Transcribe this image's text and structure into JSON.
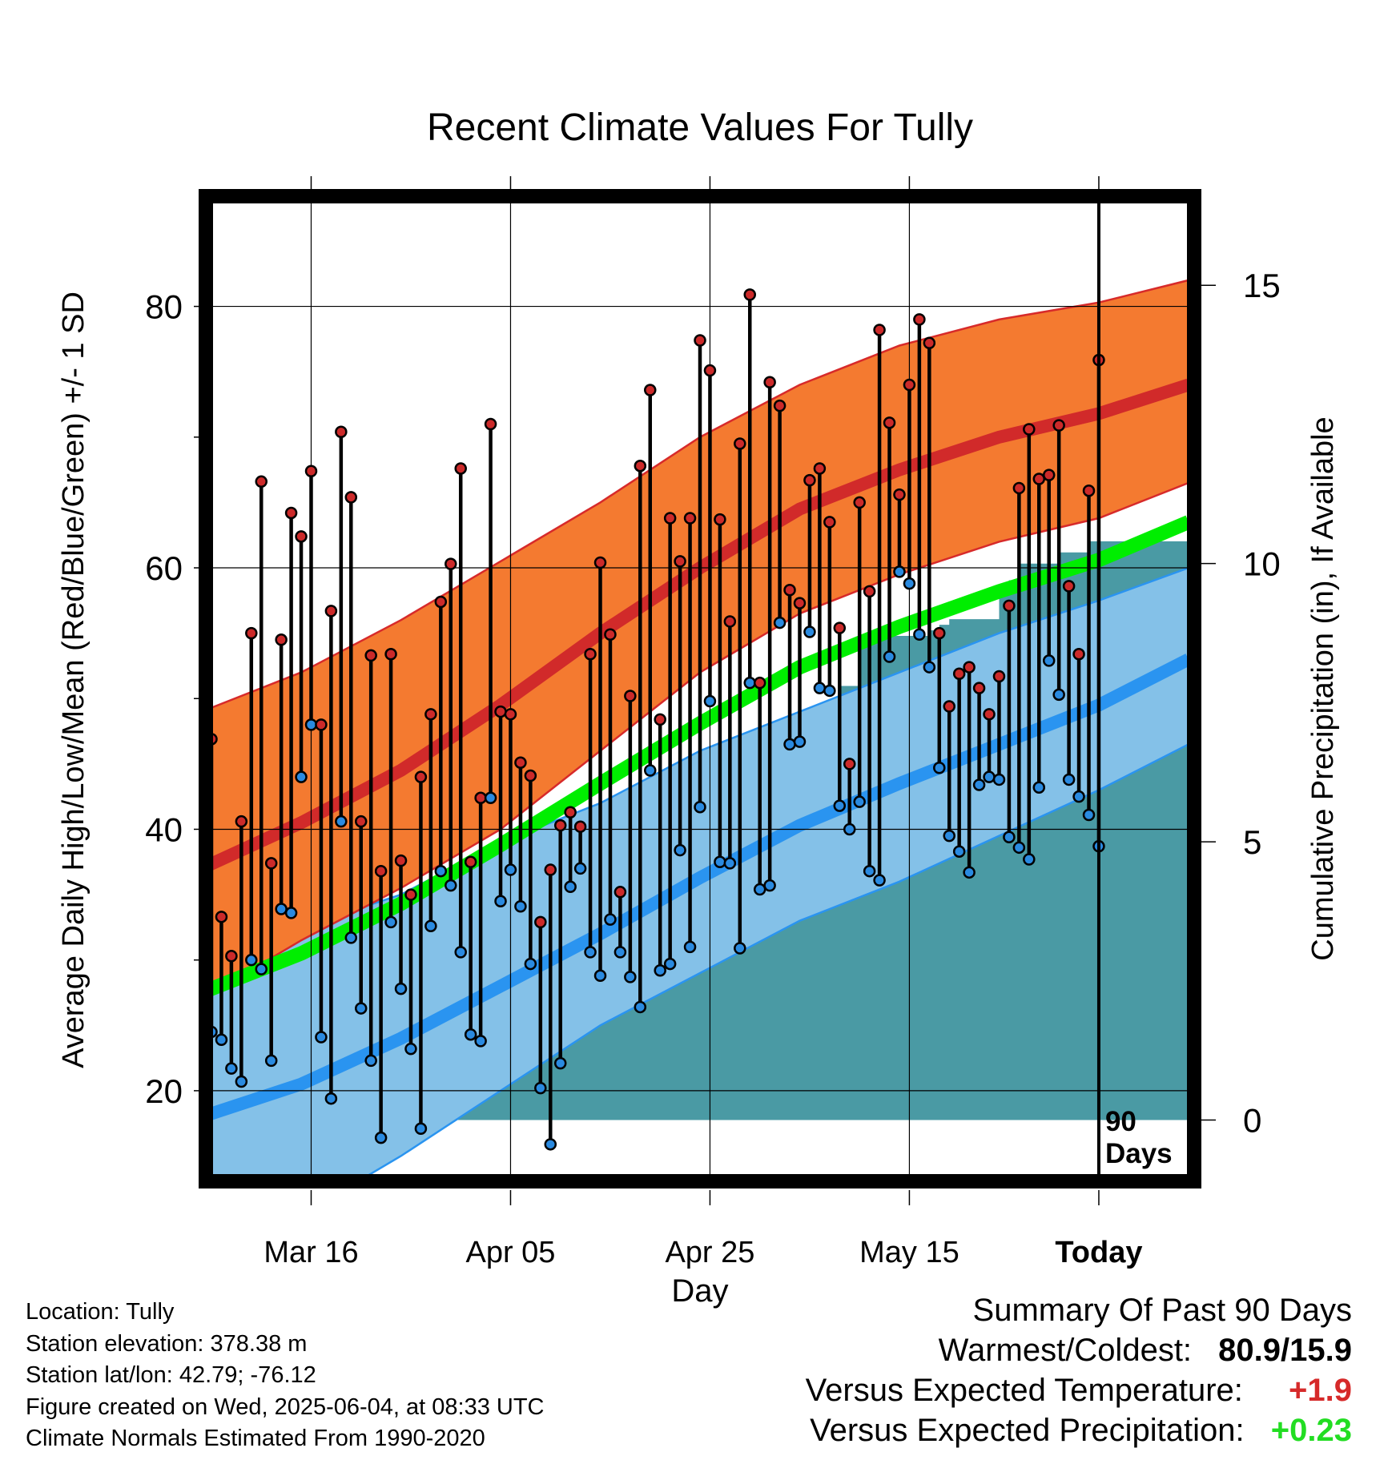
{
  "page": {
    "title": "Recent Climate Values For Tully",
    "x_axis_title": "Day",
    "y_axis_title_left": "Average Daily High/Low/Mean (Red/Blue/Green) +/- 1 SD",
    "y_axis_title_right": "Cumulative Precipitation (in), If Available"
  },
  "info": {
    "location": "Location: Tully",
    "elevation": "Station elevation: 378.38 m",
    "latlon": "Station lat/lon: 42.79; -76.12",
    "created": "Figure created on Wed, 2025-06-04, at 08:33 UTC",
    "normals": "Climate Normals Estimated From 1990-2020"
  },
  "summary": {
    "heading": "Summary Of Past 90 Days",
    "warm_cold_label": "Warmest/Coldest:",
    "warm_cold_value": "80.9/15.9",
    "temp_label": "Versus Expected Temperature:",
    "temp_value": "+1.9",
    "precip_label": "Versus Expected Precipitation:",
    "precip_value": "+0.23"
  },
  "chart_data": {
    "type": "line",
    "x_units": "days",
    "xlim": [
      -89,
      9
    ],
    "ylim_left": [
      13.5,
      88
    ],
    "ylim_right": [
      -1,
      16.5
    ],
    "left_ticks": [
      20,
      40,
      60,
      80
    ],
    "right_ticks": [
      0,
      5,
      10,
      15
    ],
    "x_ticks": [
      {
        "x": -79,
        "label": "Mar 16"
      },
      {
        "x": -59,
        "label": "Apr 05"
      },
      {
        "x": -39,
        "label": "Apr 25"
      },
      {
        "x": -19,
        "label": "May 15"
      },
      {
        "x": 0,
        "label": "Today"
      }
    ],
    "today_marker": {
      "x": 0,
      "label_line1": "90",
      "label_line2": "Days"
    },
    "colors": {
      "high_band": "#f47a30",
      "high_band_edge": "#d72a2a",
      "high_mean": "#d12a2a",
      "low_band": "#84c1e8",
      "low_band_edge": "#2a94f0",
      "low_mean": "#2a94f0",
      "mean": "#00ee00",
      "precip": "#4a9aa4",
      "high_point": "#cc2a2a",
      "low_point": "#2a8ae0"
    },
    "normals": {
      "x": [
        -90,
        -80,
        -70,
        -60,
        -50,
        -40,
        -30,
        -20,
        -10,
        0,
        9
      ],
      "high_mean": [
        37,
        40.5,
        44.5,
        49.5,
        55,
        60,
        64.5,
        67.5,
        70,
        71.8,
        74
      ],
      "high_sd_upper": [
        49,
        52,
        56,
        60.5,
        65,
        70,
        74,
        77,
        79,
        80.3,
        82
      ],
      "high_sd_lower": [
        27,
        31.5,
        35.5,
        40,
        46,
        52,
        56.5,
        59.5,
        62,
        63.8,
        66.5
      ],
      "low_mean": [
        18,
        20.5,
        24,
        28,
        32,
        36.3,
        40.3,
        43.5,
        46.5,
        49.5,
        53
      ],
      "low_sd_upper": [
        30,
        32.5,
        35,
        39,
        42,
        46,
        49,
        52,
        55,
        57.5,
        60
      ],
      "low_sd_lower": [
        7.5,
        10.5,
        15,
        20,
        25,
        29,
        33,
        36,
        39.5,
        43,
        46.5
      ],
      "daily_mean": [
        27.5,
        30.5,
        34.3,
        38.8,
        43.5,
        48.1,
        52.4,
        55.5,
        58.2,
        60.6,
        63.5
      ]
    },
    "daily": {
      "x": [
        -89,
        -88,
        -87,
        -86,
        -85,
        -84,
        -83,
        -82,
        -81,
        -80,
        -79,
        -78,
        -77,
        -76,
        -75,
        -74,
        -73,
        -72,
        -71,
        -70,
        -69,
        -68,
        -67,
        -66,
        -65,
        -64,
        -63,
        -62,
        -61,
        -60,
        -59,
        -58,
        -57,
        -56,
        -55,
        -54,
        -53,
        -52,
        -51,
        -50,
        -49,
        -48,
        -47,
        -46,
        -45,
        -44,
        -43,
        -42,
        -41,
        -40,
        -39,
        -38,
        -37,
        -36,
        -35,
        -34,
        -33,
        -32,
        -31,
        -30,
        -29,
        -28,
        -27,
        -26,
        -25,
        -24,
        -23,
        -22,
        -21,
        -20,
        -19,
        -18,
        -17,
        -16,
        -15,
        -14,
        -13,
        -12,
        -11,
        -10,
        -9,
        -8,
        -7,
        -6,
        -5,
        -4,
        -3,
        -2,
        -1,
        0
      ],
      "high": [
        46.9,
        33.3,
        30.3,
        40.6,
        55,
        66.6,
        37.4,
        54.5,
        64.2,
        62.4,
        67.4,
        48,
        56.7,
        70.4,
        65.4,
        40.6,
        53.3,
        36.8,
        53.4,
        37.6,
        35,
        44,
        48.8,
        57.4,
        60.3,
        67.6,
        37.5,
        42.4,
        71,
        49,
        48.8,
        45.1,
        44.1,
        32.9,
        36.9,
        40.3,
        41.3,
        40.2,
        53.4,
        60.4,
        54.9,
        35.2,
        50.2,
        67.8,
        73.6,
        48.4,
        63.8,
        60.5,
        63.8,
        77.4,
        75.1,
        63.7,
        55.9,
        69.5,
        80.9,
        51.2,
        74.2,
        72.4,
        58.3,
        57.3,
        66.7,
        67.6,
        63.5,
        55.4,
        45,
        65,
        58.2,
        78.2,
        71.1,
        65.6,
        74,
        79,
        77.2,
        55,
        49.4,
        51.9,
        52.4,
        50.8,
        48.8,
        51.7,
        57.1,
        66.1,
        70.6,
        66.8,
        67.1,
        70.9,
        58.6,
        53.4,
        65.9,
        75.9
      ],
      "low": [
        24.5,
        23.9,
        21.7,
        20.7,
        30,
        29.3,
        22.3,
        33.9,
        33.6,
        44,
        48,
        24.1,
        19.4,
        40.6,
        31.7,
        26.3,
        22.3,
        16.4,
        32.9,
        27.8,
        23.2,
        17.1,
        32.6,
        36.8,
        35.7,
        30.6,
        24.3,
        23.8,
        42.4,
        34.5,
        36.9,
        34.1,
        29.7,
        20.2,
        15.9,
        22.1,
        35.6,
        37,
        30.6,
        28.8,
        33.1,
        30.6,
        28.7,
        26.4,
        44.5,
        29.2,
        29.7,
        38.4,
        31,
        41.7,
        49.8,
        37.5,
        37.4,
        30.9,
        51.2,
        35.4,
        35.7,
        55.8,
        46.5,
        46.7,
        55.1,
        50.8,
        50.6,
        41.8,
        40,
        42.1,
        36.8,
        36.1,
        53.2,
        59.7,
        58.8,
        54.9,
        52.4,
        44.7,
        39.5,
        38.3,
        36.7,
        43.4,
        44,
        43.8,
        39.4,
        38.6,
        37.7,
        43.2,
        52.9,
        50.3,
        43.8,
        42.5,
        41.1,
        38.7
      ]
    },
    "cumulative_precip": {
      "x": [
        -89,
        -80,
        -79,
        -75,
        -70,
        -68,
        -67,
        -65,
        -63,
        -62,
        -61,
        -59,
        -57,
        -55,
        -54,
        -52,
        -50,
        -48,
        -47,
        -45,
        -43,
        -42,
        -40,
        -39,
        -37,
        -36,
        -35,
        -34,
        -33,
        -32,
        -31,
        -30,
        -29,
        -28,
        -27,
        -26,
        -25,
        -24,
        -23,
        -22,
        -21,
        -20,
        -19,
        -18,
        -17,
        -16,
        -15,
        -14,
        -12,
        -10,
        -9,
        -8,
        -7,
        -5,
        -4,
        -3,
        -2,
        -1,
        0,
        9
      ],
      "values": [
        0,
        0,
        1.3,
        1.3,
        1.4,
        1.5,
        1.5,
        1.8,
        2.2,
        2.2,
        2.5,
        2.8,
        3.0,
        3.1,
        3.1,
        3.3,
        3.5,
        3.6,
        3.6,
        3.6,
        3.8,
        3.8,
        4.0,
        4.1,
        4.4,
        4.5,
        4.6,
        5.5,
        5.5,
        5.6,
        5.8,
        6.0,
        6.2,
        6.3,
        7.5,
        7.8,
        7.8,
        8.6,
        8.6,
        8.7,
        8.7,
        8.7,
        8.7,
        8.7,
        8.8,
        8.9,
        9.0,
        9.0,
        9.0,
        9.5,
        9.7,
        10.0,
        10.0,
        10.0,
        10.2,
        10.2,
        10.2,
        10.4,
        10.4,
        10.4
      ]
    }
  }
}
